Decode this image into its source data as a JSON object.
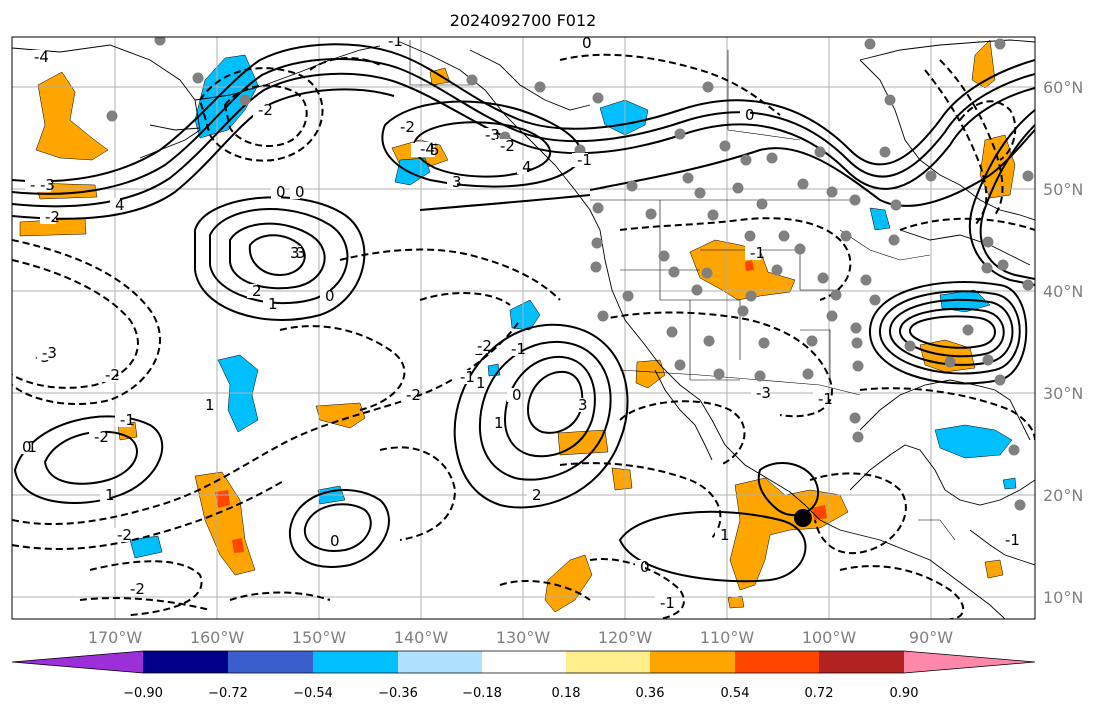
{
  "title": "2024092700 F012",
  "lon_labels": [
    "170°W",
    "160°W",
    "150°W",
    "140°W",
    "130°W",
    "120°W",
    "110°W",
    "100°W",
    "90°W"
  ],
  "lat_labels": [
    "60°N",
    "50°N",
    "40°N",
    "30°N",
    "20°N",
    "10°N"
  ],
  "colorbar": {
    "tick_labels": [
      "−0.90",
      "−0.72",
      "−0.54",
      "−0.36",
      "−0.18",
      "0.18",
      "0.36",
      "0.54",
      "0.72",
      "0.90"
    ],
    "colors": [
      "#9b30d9",
      "#00008b",
      "#3a5fcd",
      "#00bfff",
      "#b0e2ff",
      "#ffffff",
      "#ffec8b",
      "#ffa500",
      "#ff4500",
      "#b22222",
      "#ff88aa"
    ]
  },
  "contour_labels": [
    "-1",
    "0",
    "-3",
    "-4",
    "5",
    "-5",
    "-3",
    "3",
    "-2",
    "4",
    "-2",
    "0",
    "-5",
    "-4",
    "-3",
    "-2",
    "4",
    "3",
    "-2",
    "-1",
    "3",
    "1",
    "2",
    "0",
    "-1",
    "-3",
    "-2",
    "2",
    "-1",
    "-2",
    "-1",
    "1",
    "0",
    "-2",
    "1",
    "-2",
    "0",
    "3",
    "2",
    "1",
    "0",
    "-2",
    "1",
    "-1",
    "2",
    "-1",
    "0",
    "-2",
    "-3",
    "-1",
    "0",
    "0",
    "-1",
    "-2",
    "1",
    "-1",
    "0",
    "-1"
  ],
  "colors": {
    "orange": "#ffa500",
    "red": "#ff4500",
    "blue": "#00bfff",
    "grey_dots": "#808080"
  }
}
